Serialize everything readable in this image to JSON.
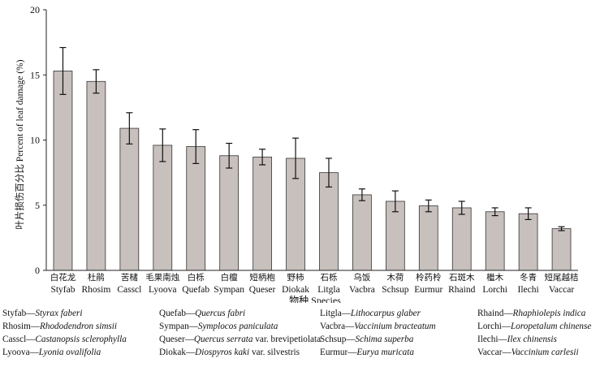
{
  "chart_data": {
    "type": "bar",
    "ylabel": "叶片损伤百分比 Percent of leaf damage (%)",
    "xlabel": "物种 Species",
    "ylim": [
      0,
      20
    ],
    "yticks": [
      0,
      5,
      10,
      15,
      20
    ],
    "categories": [
      "Styfab",
      "Rhosim",
      "Casscl",
      "Lyoova",
      "Quefab",
      "Sympan",
      "Queser",
      "Diokak",
      "Litgla",
      "Vacbra",
      "Schsup",
      "Eurmur",
      "Rhaind",
      "Lorchi",
      "Ilechi",
      "Vaccar"
    ],
    "categories_cn": [
      "白花龙",
      "杜鹃",
      "苦槠",
      "毛果南烛",
      "白栎",
      "白檀",
      "短柄枹",
      "野柿",
      "石栎",
      "乌饭",
      "木荷",
      "柃药柃",
      "石斑木",
      "檵木",
      "冬青",
      "短尾越桔"
    ],
    "values": [
      15.3,
      14.5,
      10.9,
      9.6,
      9.5,
      8.8,
      8.7,
      8.6,
      7.5,
      5.8,
      5.3,
      4.95,
      4.8,
      4.5,
      4.35,
      3.2
    ],
    "errors": [
      1.8,
      0.9,
      1.2,
      1.25,
      1.3,
      0.95,
      0.6,
      1.55,
      1.1,
      0.45,
      0.8,
      0.45,
      0.5,
      0.3,
      0.45,
      0.15
    ],
    "bar_color": "#c8c0bd"
  },
  "legend": [
    {
      "code": "Styfab",
      "name": "Styrax faberi",
      "suffix": ""
    },
    {
      "code": "Rhosim",
      "name": "Rhododendron simsii",
      "suffix": ""
    },
    {
      "code": "Casscl",
      "name": "Castanopsis sclerophylla",
      "suffix": ""
    },
    {
      "code": "Lyoova",
      "name": "Lyonia ovalifolia",
      "suffix": ""
    },
    {
      "code": "Quefab",
      "name": "Quercus fabri",
      "suffix": ""
    },
    {
      "code": "Sympan",
      "name": "Symplocos paniculata",
      "suffix": ""
    },
    {
      "code": "Queser",
      "name": "Quercus serrata",
      "suffix": " var. brevipetiolata"
    },
    {
      "code": "Diokak",
      "name": "Diospyros kaki",
      "suffix": " var. silvestris"
    },
    {
      "code": "Litgla",
      "name": "Lithocarpus glaber",
      "suffix": ""
    },
    {
      "code": "Vacbra",
      "name": "Vaccinium bracteatum",
      "suffix": ""
    },
    {
      "code": "Schsup",
      "name": "Schima superba",
      "suffix": ""
    },
    {
      "code": "Eurmur",
      "name": "Eurya muricata",
      "suffix": ""
    },
    {
      "code": "Rhaind",
      "name": "Rhaphiolepis indica",
      "suffix": ""
    },
    {
      "code": "Lorchi",
      "name": "Loropetalum chinense",
      "suffix": ""
    },
    {
      "code": "Ilechi",
      "name": "Ilex chinensis",
      "suffix": ""
    },
    {
      "code": "Vaccar",
      "name": "Vaccinium carlesii",
      "suffix": ""
    }
  ],
  "legend_sep": "—"
}
